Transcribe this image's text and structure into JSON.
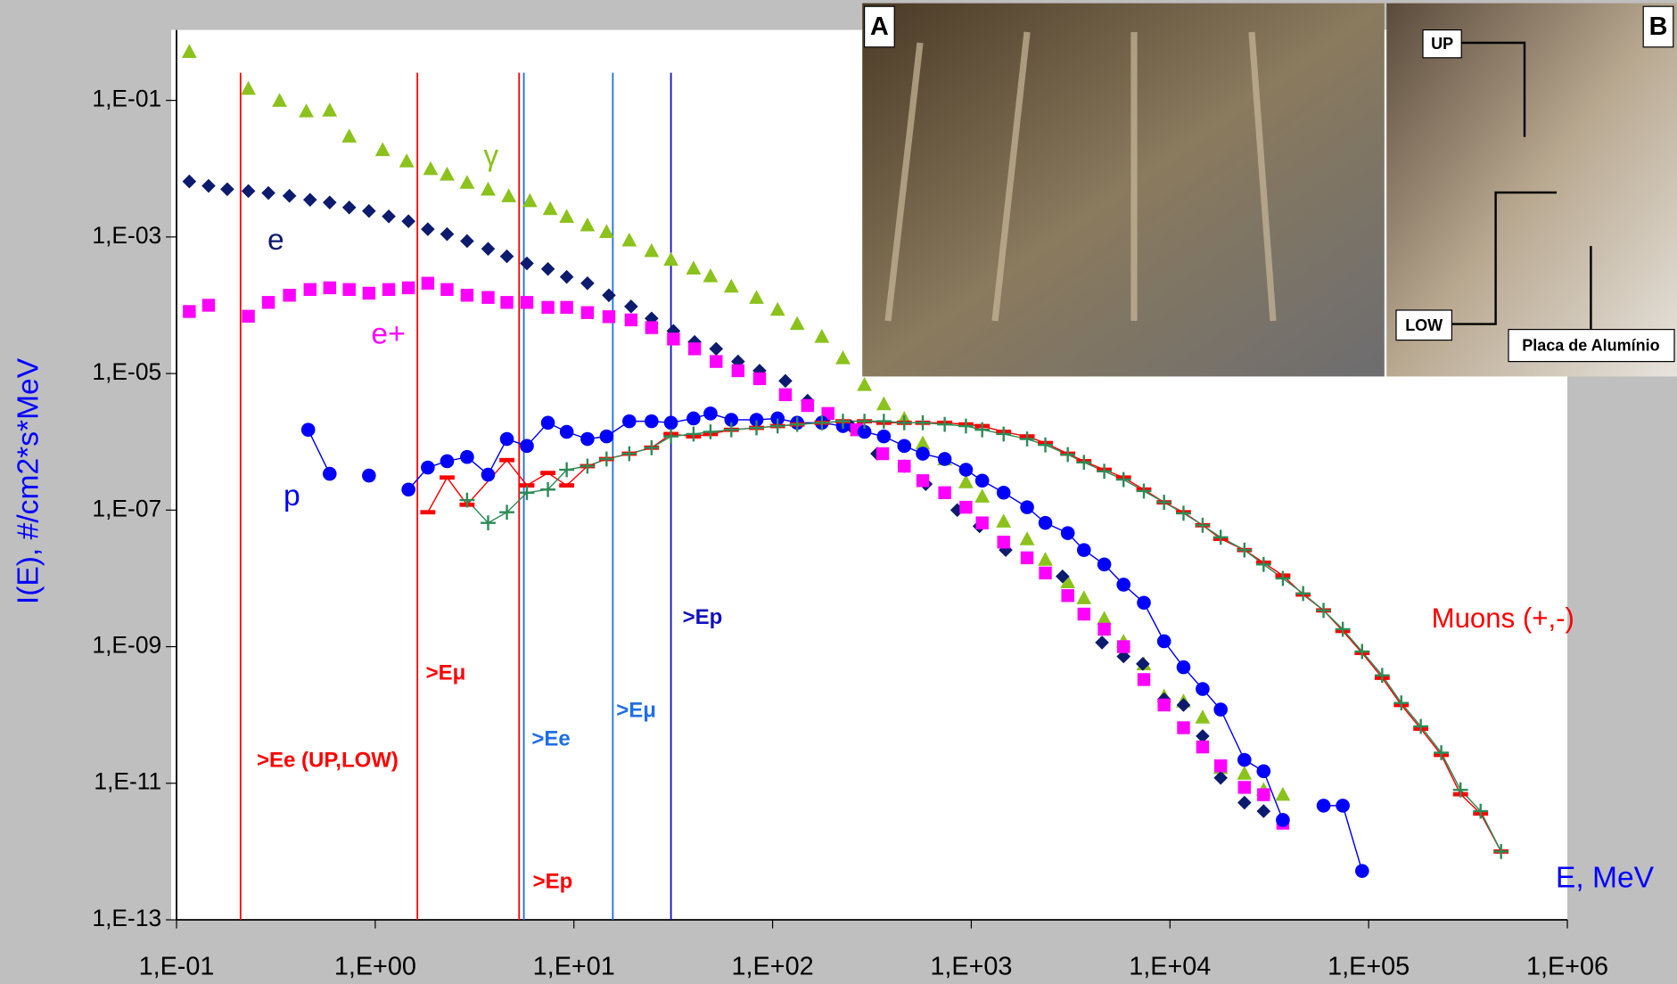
{
  "chart_data": {
    "type": "scatter",
    "x_label": "E, MeV",
    "y_label": "I(E),   #/cm2*s*MeV",
    "xlim": [
      0.1,
      1000000
    ],
    "ylim": [
      1e-13,
      1
    ],
    "log_x": true,
    "log_y": true,
    "xticks": [
      {
        "value": 0.1,
        "label": "1,E-01"
      },
      {
        "value": 1,
        "label": "1,E+00"
      },
      {
        "value": 10,
        "label": "1,E+01"
      },
      {
        "value": 100,
        "label": "1,E+02"
      },
      {
        "value": 1000,
        "label": "1,E+03"
      },
      {
        "value": 10000,
        "label": "1,E+04"
      },
      {
        "value": 100000,
        "label": "1,E+05"
      },
      {
        "value": 1000000,
        "label": "1,E+06"
      }
    ],
    "yticks": [
      {
        "value": 1e-13,
        "label": "1,E-13"
      },
      {
        "value": 1e-11,
        "label": "1,E-11"
      },
      {
        "value": 1e-09,
        "label": "1,E-09"
      },
      {
        "value": 1e-07,
        "label": "1,E-07"
      },
      {
        "value": 1e-05,
        "label": "1,E-05"
      },
      {
        "value": 0.001,
        "label": "1,E-03"
      },
      {
        "value": 0.1,
        "label": "1,E-01"
      }
    ],
    "series": [
      {
        "name": "γ",
        "color": "#8cc21c",
        "marker": "triangle",
        "line": false,
        "x": [
          0.116,
          0.23,
          0.33,
          0.45,
          0.59,
          0.74,
          1.09,
          1.44,
          1.9,
          2.3,
          2.9,
          3.7,
          4.7,
          6.0,
          7.6,
          9.2,
          11.7,
          14.6,
          19,
          24.6,
          30.8,
          40,
          48.7,
          62,
          83,
          106,
          133,
          177,
          226,
          290,
          363,
          460,
          570,
          735,
          940,
          1135,
          1455,
          1910,
          2360,
          3060,
          3690,
          4670,
          5840,
          7390,
          9340,
          11700,
          14600,
          18000,
          23700,
          29600,
          37000
        ],
        "values": [
          0.52,
          0.15,
          0.1,
          0.07,
          0.072,
          0.03,
          0.019,
          0.013,
          0.01,
          0.0083,
          0.0063,
          0.005,
          0.004,
          0.0034,
          0.0026,
          0.002,
          0.0015,
          0.0012,
          0.0009,
          0.00063,
          0.00047,
          0.00035,
          0.00027,
          0.00019,
          0.00013,
          8.7e-05,
          5.4e-05,
          3.5e-05,
          1.7e-05,
          6.9e-06,
          3.6e-06,
          2.2e-06,
          9.6e-07,
          5.6e-07,
          2.6e-07,
          1.6e-07,
          6.9e-08,
          3.8e-08,
          1.9e-08,
          8.9e-09,
          5.2e-09,
          2.6e-09,
          1.2e-09,
          5.6e-10,
          1.9e-10,
          1.6e-10,
          9.3e-11,
          1.7e-11,
          1.4e-11,
          8.1e-12,
          6.9e-12
        ]
      },
      {
        "name": "e",
        "color": "#0d1b6e",
        "marker": "diamond",
        "line": false,
        "x": [
          0.116,
          0.145,
          0.18,
          0.23,
          0.29,
          0.37,
          0.47,
          0.59,
          0.74,
          0.93,
          1.17,
          1.47,
          1.84,
          2.3,
          2.9,
          3.7,
          4.6,
          5.8,
          7.4,
          9.2,
          11.7,
          15,
          19.4,
          24.6,
          31.7,
          40.5,
          52,
          67,
          86,
          116,
          150,
          190,
          247,
          336,
          460,
          590,
          850,
          1100,
          1490,
          2880,
          4550,
          5840,
          7300,
          9340,
          11700,
          14600,
          18000,
          23700,
          29600,
          37000
        ],
        "values": [
          0.0065,
          0.0056,
          0.005,
          0.0047,
          0.0044,
          0.004,
          0.0035,
          0.0032,
          0.0027,
          0.0024,
          0.002,
          0.0017,
          0.0013,
          0.0011,
          0.00087,
          0.00067,
          0.00052,
          0.00041,
          0.00034,
          0.00026,
          0.00021,
          0.00014,
          9.6e-05,
          6.4e-05,
          4.2e-05,
          2.9e-05,
          2.3e-05,
          1.5e-05,
          1.1e-05,
          7.8e-06,
          4e-06,
          2.4e-06,
          1.7e-06,
          6.7e-07,
          4.4e-07,
          2.4e-07,
          1e-07,
          5.8e-08,
          2.6e-08,
          1.07e-08,
          1.15e-09,
          7.2e-10,
          5.6e-10,
          1.7e-10,
          1.4e-10,
          4.9e-11,
          1.2e-11,
          5.2e-12,
          3.9e-12,
          2.9e-12
        ]
      },
      {
        "name": "e+",
        "color": "#ff00ff",
        "marker": "square",
        "line": false,
        "x": [
          0.116,
          0.145,
          0.23,
          0.29,
          0.37,
          0.47,
          0.59,
          0.74,
          0.93,
          1.17,
          1.47,
          1.84,
          2.3,
          2.9,
          3.7,
          4.6,
          5.8,
          7.4,
          9.2,
          11.7,
          15,
          19.4,
          24.6,
          31.7,
          40.5,
          52,
          67,
          86,
          116,
          150,
          190,
          265,
          358,
          460,
          570,
          735,
          940,
          1135,
          1455,
          1910,
          2360,
          3060,
          3690,
          4670,
          5840,
          7390,
          9340,
          11700,
          14600,
          18000,
          23700,
          29600,
          37000
        ],
        "values": [
          8.1e-05,
          0.0001,
          6.9e-05,
          0.00011,
          0.00014,
          0.00017,
          0.00018,
          0.00017,
          0.00015,
          0.00017,
          0.00018,
          0.00021,
          0.00017,
          0.00014,
          0.00013,
          0.00011,
          0.00011,
          9.3e-05,
          9.3e-05,
          7.8e-05,
          6.8e-05,
          6.1e-05,
          4.7e-05,
          3.2e-05,
          2.3e-05,
          1.5e-05,
          1.1e-05,
          8.4e-06,
          4.9e-06,
          3.4e-06,
          2.6e-06,
          1.5e-06,
          6.7e-07,
          4.4e-07,
          2.7e-07,
          1.8e-07,
          1.1e-07,
          6.5e-08,
          3.4e-08,
          2e-08,
          1.2e-08,
          5.6e-09,
          3e-09,
          1.8e-09,
          1e-09,
          3.3e-10,
          1.4e-10,
          6.5e-11,
          3.4e-11,
          1.8e-11,
          8.7e-12,
          6.8e-12,
          2.6e-12
        ]
      },
      {
        "name": "p",
        "color": "#0000ff",
        "marker": "circle",
        "line": true,
        "x": [
          0.46,
          0.59,
          null,
          0.93,
          null,
          1.47,
          1.84,
          2.3,
          2.9,
          3.7,
          4.6,
          5.8,
          7.4,
          9.2,
          11.7,
          14.6,
          19,
          24.6,
          30.8,
          40,
          48.7,
          62,
          83,
          106,
          133,
          177,
          226,
          290,
          363,
          460,
          570,
          735,
          940,
          1135,
          1455,
          1910,
          2360,
          3060,
          3690,
          4670,
          5840,
          7390,
          9340,
          11700,
          14600,
          18000,
          23700,
          29600,
          37000,
          null,
          59300,
          74100,
          92700
        ],
        "values": [
          1.5e-06,
          3.4e-07,
          null,
          3.2e-07,
          null,
          2e-07,
          4.2e-07,
          5.2e-07,
          6e-07,
          3.3e-07,
          1.1e-06,
          8.7e-07,
          1.9e-06,
          1.4e-06,
          1.1e-06,
          1.2e-06,
          2e-06,
          2e-06,
          1.9e-06,
          2.2e-06,
          2.6e-06,
          2.1e-06,
          2.1e-06,
          2.2e-06,
          1.9e-06,
          1.9e-06,
          1.7e-06,
          1.4e-06,
          1.2e-06,
          8.7e-07,
          6.7e-07,
          5.6e-07,
          3.9e-07,
          2.7e-07,
          1.8e-07,
          1.1e-07,
          6.5e-08,
          4.6e-08,
          2.6e-08,
          1.6e-08,
          8.1e-09,
          4.4e-09,
          1.2e-09,
          5e-10,
          2.4e-10,
          1.2e-10,
          2.2e-11,
          1.5e-11,
          2.9e-12,
          null,
          4.7e-12,
          4.7e-12,
          5.2e-13
        ]
      },
      {
        "name": "Muons (+,-)",
        "color": "#ff0000",
        "marker": "dash",
        "line": true,
        "x": [
          1.84,
          2.3,
          2.9,
          4.6,
          5.8,
          7.4,
          9.2,
          11.7,
          14.6,
          19,
          24.6,
          30.8,
          40,
          48.7,
          62,
          83,
          106,
          133,
          177,
          226,
          290,
          363,
          460,
          570,
          735,
          940,
          1135,
          1455,
          1910,
          2360,
          3060,
          3690,
          4670,
          5840,
          7390,
          9340,
          11700,
          14600,
          18000,
          23700,
          29600,
          37000,
          46800,
          59300,
          74100,
          92700,
          117000,
          146000,
          183000,
          232000,
          290000,
          366000,
          464000
        ],
        "values": [
          9.3e-08,
          3e-07,
          1.2e-07,
          5.4e-07,
          2.3e-07,
          3.5e-07,
          2.3e-07,
          4.4e-07,
          5.6e-07,
          6.7e-07,
          8.2e-07,
          1.3e-06,
          1.2e-06,
          1.3e-06,
          1.5e-06,
          1.6e-06,
          1.7e-06,
          1.8e-06,
          1.9e-06,
          2e-06,
          2e-06,
          1.9e-06,
          1.9e-06,
          1.9e-06,
          1.9e-06,
          1.8e-06,
          1.7e-06,
          1.4e-06,
          1.2e-06,
          9.6e-07,
          6.7e-07,
          5.2e-07,
          3.9e-07,
          3e-07,
          2e-07,
          1.3e-07,
          9.3e-08,
          6e-08,
          3.8e-08,
          2.6e-08,
          1.7e-08,
          1.1e-08,
          5.8e-09,
          3.4e-09,
          1.7e-09,
          8.1e-10,
          3.5e-10,
          1.4e-10,
          6.3e-11,
          2.6e-11,
          6.9e-12,
          3.6e-12,
          1e-12
        ]
      },
      {
        "color": "#2e8b57",
        "marker": "plus",
        "line": true,
        "x": [
          2.9,
          3.7,
          4.6,
          5.8,
          7.4,
          9.2,
          11.7,
          14.6,
          19,
          24.6,
          30.8,
          40,
          48.7,
          62,
          83,
          106,
          133,
          177,
          226,
          290,
          363,
          460,
          570,
          735,
          940,
          1135,
          1455,
          1910,
          2360,
          3060,
          3690,
          4670,
          5840,
          7390,
          9340,
          11700,
          14600,
          18000,
          23700,
          29600,
          37000,
          46800,
          59300,
          74100,
          92700,
          117000,
          146000,
          183000,
          232000,
          290000,
          366000,
          464000
        ],
        "values": [
          1.4e-07,
          6.5e-08,
          9.3e-08,
          1.8e-07,
          2e-07,
          3.9e-07,
          4.4e-07,
          5.6e-07,
          6.7e-07,
          8.2e-07,
          1.2e-06,
          1.3e-06,
          1.4e-06,
          1.5e-06,
          1.6e-06,
          1.7e-06,
          1.8e-06,
          1.9e-06,
          2e-06,
          2e-06,
          2e-06,
          1.9e-06,
          1.9e-06,
          1.8e-06,
          1.7e-06,
          1.5e-06,
          1.3e-06,
          1.1e-06,
          9e-07,
          6.5e-07,
          5e-07,
          3.7e-07,
          2.8e-07,
          1.9e-07,
          1.3e-07,
          9e-08,
          6e-08,
          4e-08,
          2.6e-08,
          1.6e-08,
          1e-08,
          6e-09,
          3.4e-09,
          1.8e-09,
          8.5e-10,
          3.8e-10,
          1.5e-10,
          6.8e-11,
          2.8e-11,
          8e-12,
          3.9e-12,
          1e-12
        ]
      }
    ],
    "thresholds": [
      {
        "x": 0.21,
        "label": ">Ee (UP,LOW)",
        "color": "#ff0000"
      },
      {
        "x": 1.63,
        "label": ">Eμ",
        "color": "#ff0000"
      },
      {
        "x": 5.3,
        "label": ">Ep",
        "color": "#ff0000"
      },
      {
        "x": 5.6,
        "label": ">Ee",
        "color": "#1e6ee6"
      },
      {
        "x": 15.7,
        "label": ">Eμ",
        "color": "#1e6ee6"
      },
      {
        "x": 30.8,
        "label": ">Ep",
        "color": "#1010c0"
      }
    ]
  },
  "inset": {
    "labels": [
      "A",
      "B",
      "UP",
      "LOW",
      "Placa de Alumínio"
    ]
  }
}
